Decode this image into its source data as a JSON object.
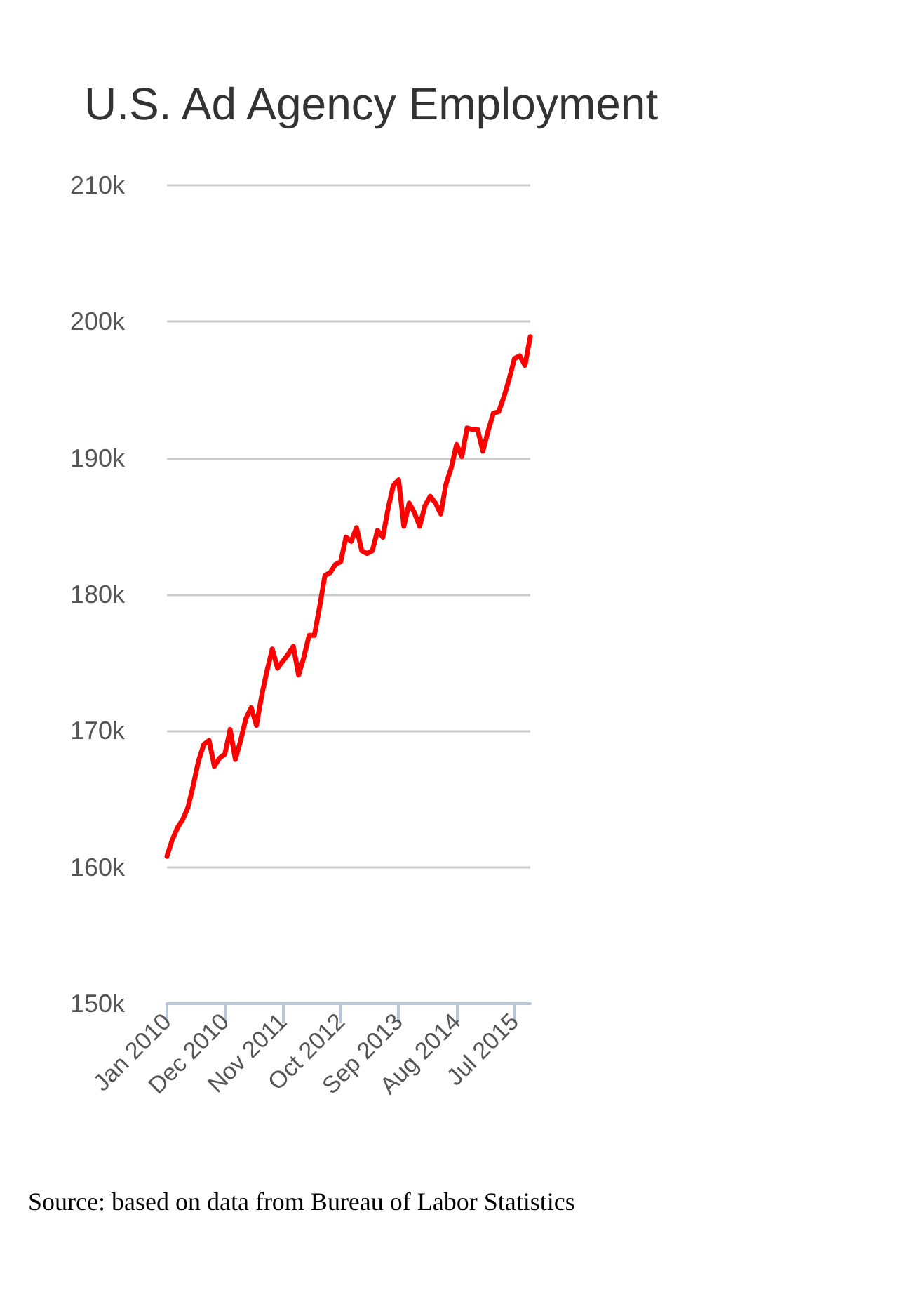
{
  "chart_data": {
    "type": "line",
    "title": "U.S. Ad Agency Employment",
    "categories": [
      "Jan 2010",
      null,
      null,
      null,
      null,
      null,
      null,
      null,
      null,
      null,
      null,
      "Dec 2010",
      null,
      null,
      null,
      null,
      null,
      null,
      null,
      null,
      null,
      null,
      "Nov 2011",
      null,
      null,
      null,
      null,
      null,
      null,
      null,
      null,
      null,
      null,
      "Oct 2012",
      null,
      null,
      null,
      null,
      null,
      null,
      null,
      null,
      null,
      null,
      "Sep 2013",
      null,
      null,
      null,
      null,
      null,
      null,
      null,
      null,
      null,
      null,
      "Aug 2014",
      null,
      null,
      null,
      null,
      null,
      null,
      null,
      null,
      null,
      null,
      "Jul 2015",
      null,
      null,
      null
    ],
    "series": [
      {
        "color": "#ff0000",
        "values": [
          160800,
          162000,
          162900,
          163500,
          164400,
          166000,
          167800,
          169000,
          169300,
          167400,
          168000,
          168300,
          170100,
          167900,
          169300,
          170900,
          171700,
          170400,
          172600,
          174400,
          176000,
          174600,
          175100,
          175600,
          176200,
          174100,
          175400,
          177000,
          177000,
          179100,
          181400,
          181600,
          182200,
          182400,
          184200,
          183900,
          184900,
          183200,
          183000,
          183200,
          184700,
          184200,
          186300,
          188000,
          188400,
          185000,
          186700,
          186000,
          185000,
          186500,
          187200,
          186700,
          185900,
          188100,
          189300,
          191000,
          190100,
          192200,
          192100,
          192100,
          190500,
          192000,
          193300,
          193400,
          194500,
          195800,
          197300,
          197500,
          196800,
          198900
        ]
      }
    ],
    "ylim": [
      150000,
      210000
    ],
    "yticks": [
      {
        "value": 150000,
        "label": "150k"
      },
      {
        "value": 160000,
        "label": "160k"
      },
      {
        "value": 170000,
        "label": "170k"
      },
      {
        "value": 180000,
        "label": "180k"
      },
      {
        "value": 190000,
        "label": "190k"
      },
      {
        "value": 200000,
        "label": "200k"
      },
      {
        "value": 210000,
        "label": "210k"
      }
    ],
    "grid": "y",
    "marker": "none",
    "line_style": "solid",
    "annotations": [
      "Source: based on data from Bureau of Labor Statistics"
    ]
  }
}
